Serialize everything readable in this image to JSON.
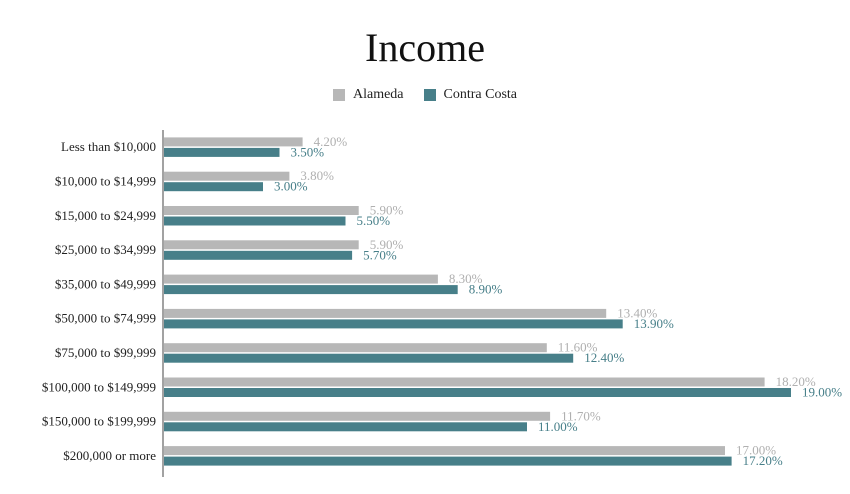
{
  "chart_data": {
    "type": "bar",
    "orientation": "horizontal",
    "title": "Income",
    "categories": [
      "Less than $10,000",
      "$10,000 to $14,999",
      "$15,000 to $24,999",
      "$25,000 to $34,999",
      "$35,000 to $49,999",
      "$50,000 to $74,999",
      "$75,000 to $99,999",
      "$100,000 to $149,999",
      "$150,000 to $199,999",
      "$200,000 or more"
    ],
    "series": [
      {
        "name": "Alameda",
        "color": "#b7b7b7",
        "label_color": "#b0b0b0",
        "values": [
          4.2,
          3.8,
          5.9,
          5.9,
          8.3,
          13.4,
          11.6,
          18.2,
          11.7,
          17.0
        ],
        "labels": [
          "4.20%",
          "3.80%",
          "5.90%",
          "5.90%",
          "8.30%",
          "13.40%",
          "11.60%",
          "18.20%",
          "11.70%",
          "17.00%"
        ]
      },
      {
        "name": "Contra Costa",
        "color": "#477f89",
        "label_color": "#477f89",
        "values": [
          3.5,
          3.0,
          5.5,
          5.7,
          8.9,
          13.9,
          12.4,
          19.0,
          11.0,
          17.2
        ],
        "labels": [
          "3.50%",
          "3.00%",
          "5.50%",
          "5.70%",
          "8.90%",
          "13.90%",
          "12.40%",
          "19.00%",
          "11.00%",
          "17.20%"
        ]
      }
    ],
    "xlim": [
      0,
      19.0
    ],
    "grid": false,
    "legend_position": "top-center"
  }
}
